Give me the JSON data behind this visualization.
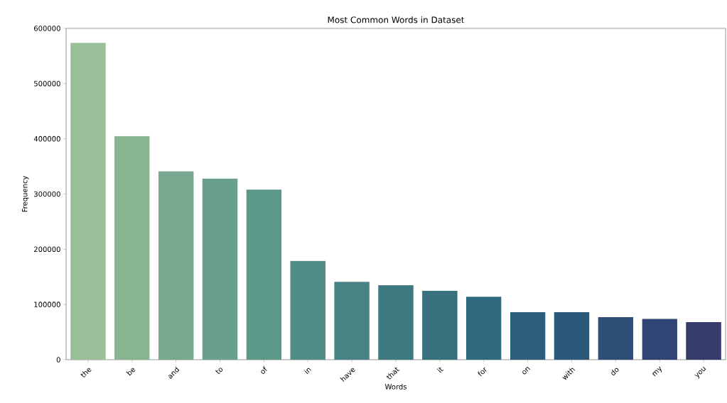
{
  "chart_data": {
    "type": "bar",
    "title": "Most Common Words in Dataset",
    "xlabel": "Words",
    "ylabel": "Frequency",
    "categories": [
      "the",
      "be",
      "and",
      "to",
      "of",
      "in",
      "have",
      "that",
      "it",
      "for",
      "on",
      "with",
      "do",
      "my",
      "you"
    ],
    "values": [
      574000,
      405000,
      341000,
      328000,
      308000,
      179000,
      141000,
      135000,
      125000,
      114000,
      86000,
      86000,
      77000,
      74000,
      68000
    ],
    "colors": [
      "#9bbf98",
      "#88b492",
      "#78a990",
      "#68a08d",
      "#5c988a",
      "#528c87",
      "#4a8384",
      "#3f7a80",
      "#38717e",
      "#30687d",
      "#2b5f7c",
      "#2b5779",
      "#2e4e78",
      "#314575",
      "#353c6c"
    ],
    "ylim": [
      0,
      600000
    ],
    "yticks": [
      0,
      100000,
      200000,
      300000,
      400000,
      500000,
      600000
    ]
  }
}
